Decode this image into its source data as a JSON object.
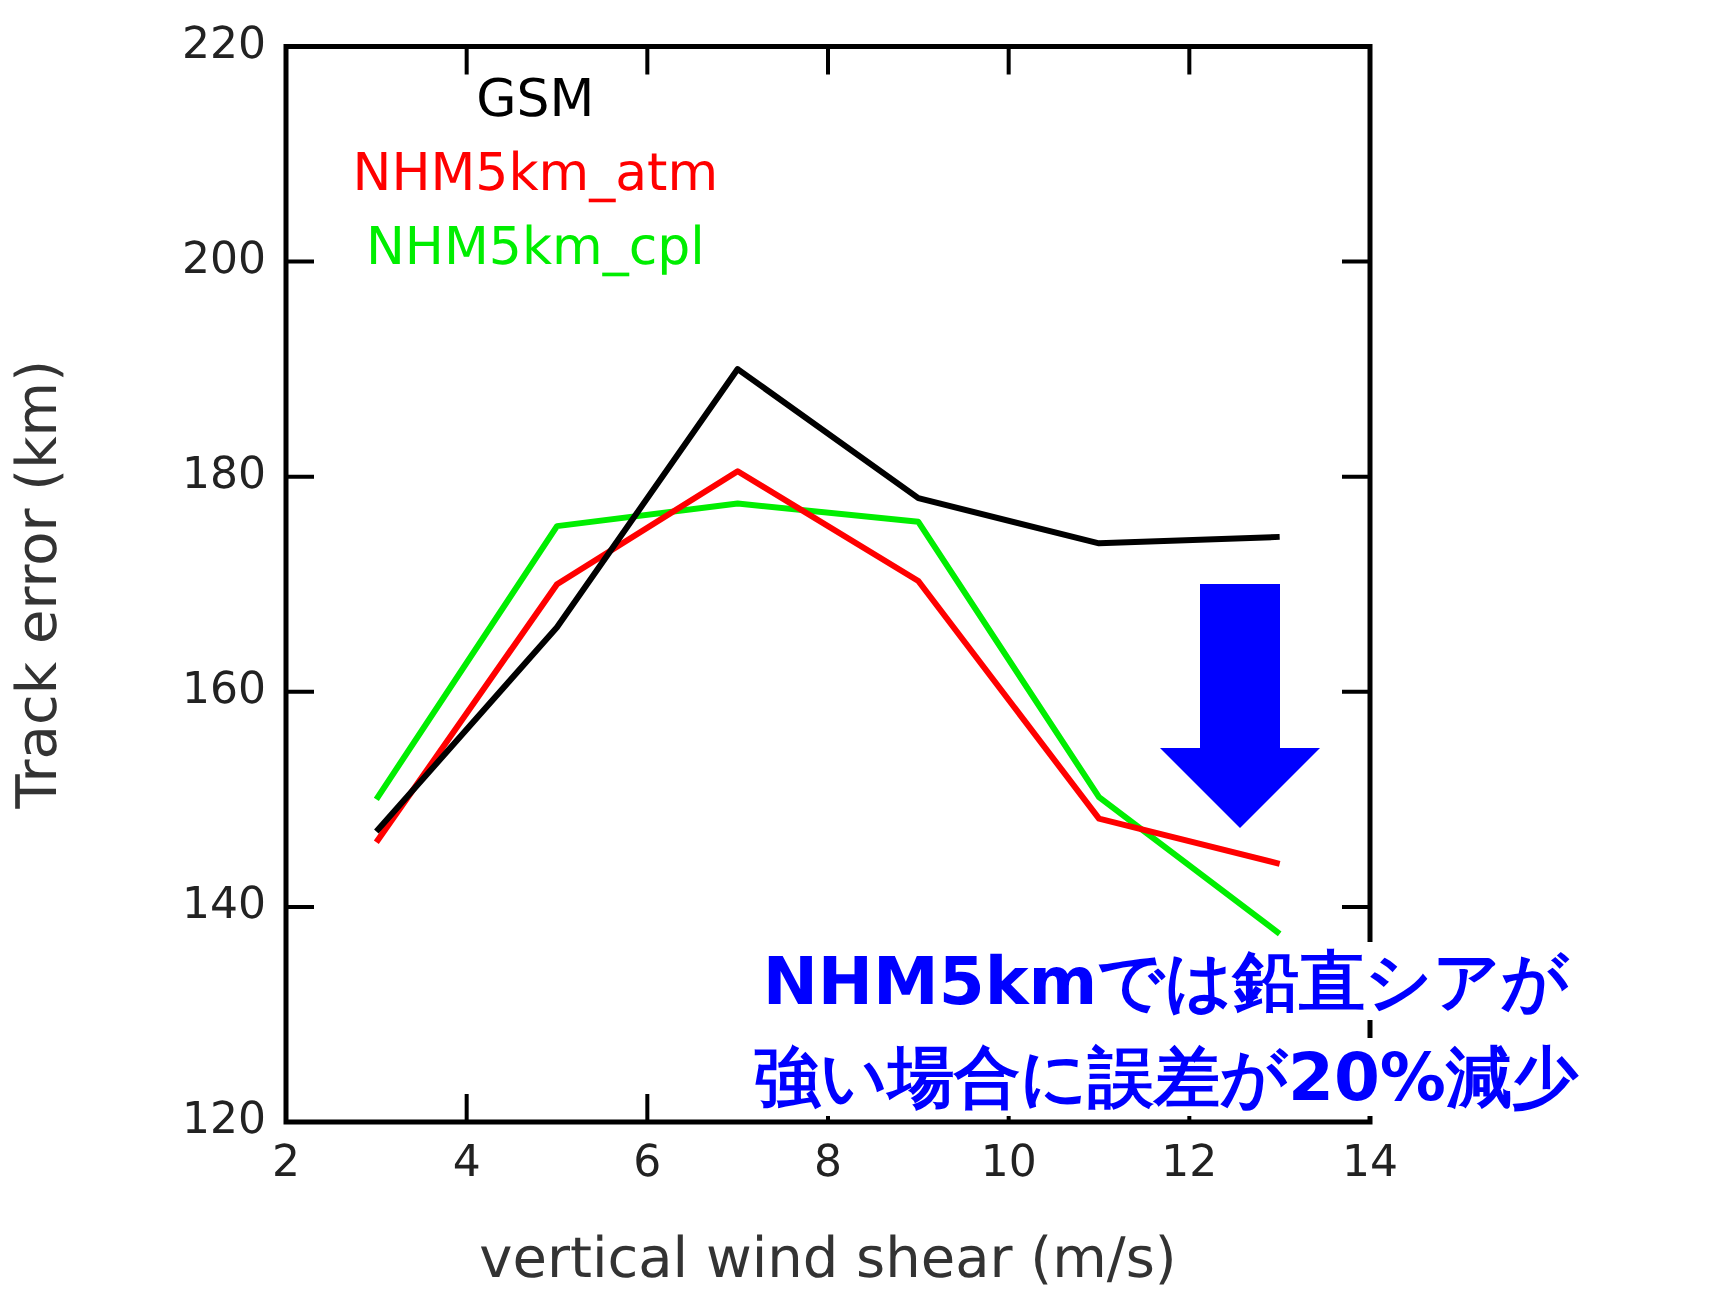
{
  "chart_data": {
    "type": "line",
    "xlabel": "vertical wind shear (m/s)",
    "ylabel": "Track error (km)",
    "x": [
      3,
      5,
      7,
      9,
      11,
      13
    ],
    "series": [
      {
        "name": "GSM",
        "color": "#000000",
        "values": [
          147,
          166,
          190,
          178,
          173.8,
          174.4
        ]
      },
      {
        "name": "NHM5km_atm",
        "color": "#ff0000",
        "values": [
          146,
          170,
          180.5,
          170.3,
          148.2,
          144
        ]
      },
      {
        "name": "NHM5km_cpl",
        "color": "#00ee00",
        "values": [
          150,
          175.4,
          177.5,
          175.8,
          150.2,
          137.5
        ]
      }
    ],
    "xlim": [
      2,
      14
    ],
    "xticks": [
      2,
      4,
      6,
      8,
      10,
      12,
      14
    ],
    "ylim": [
      120,
      220
    ],
    "yticks": [
      120,
      140,
      160,
      180,
      200,
      220
    ],
    "grid": false,
    "legend": "top left",
    "marker": "none",
    "line_style": "solid",
    "annotations": [
      "NHM5kmでは鉛直シアが",
      "強い場合に誤差が20%減少"
    ]
  }
}
